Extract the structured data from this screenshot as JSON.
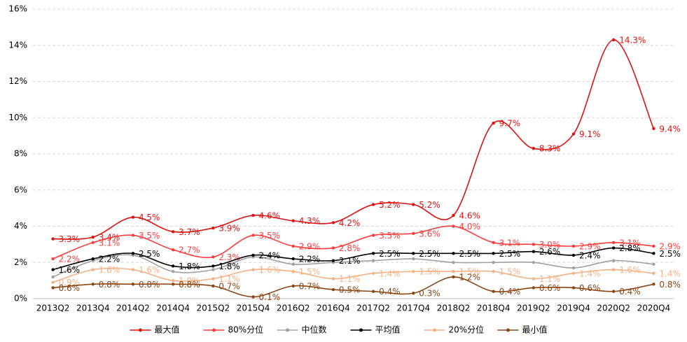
{
  "chart_data": {
    "type": "line",
    "categories": [
      "2013Q2",
      "2013Q4",
      "2014Q2",
      "2014Q4",
      "2015Q2",
      "2015Q4",
      "2016Q2",
      "2016Q4",
      "2017Q2",
      "2017Q4",
      "2018Q2",
      "2018Q4",
      "2019Q2",
      "2019Q4",
      "2020Q2",
      "2020Q4"
    ],
    "ylim": [
      0,
      16
    ],
    "yticks": [
      {
        "value": 0,
        "label": "0%"
      },
      {
        "value": 2,
        "label": "2%"
      },
      {
        "value": 4,
        "label": "4%"
      },
      {
        "value": 6,
        "label": "6%"
      },
      {
        "value": 8,
        "label": "8%"
      },
      {
        "value": 10,
        "label": "10%"
      },
      {
        "value": 12,
        "label": "12%"
      },
      {
        "value": 14,
        "label": "14%"
      },
      {
        "value": 16,
        "label": "16%"
      }
    ],
    "grid": true,
    "legend": "bottom",
    "series": [
      {
        "name": "最大值",
        "color": "#e01010",
        "values": [
          3.3,
          3.4,
          4.5,
          3.7,
          3.9,
          4.6,
          4.3,
          4.2,
          5.2,
          5.2,
          4.6,
          9.7,
          8.3,
          9.1,
          14.3,
          9.4
        ],
        "value_labels": [
          "3.3%",
          "3.4%",
          "4.5%",
          "3.7%",
          "3.9%",
          "4.6%",
          "4.3%",
          "4.2%",
          "5.2%",
          "5.2%",
          "4.6%",
          "9.7%",
          "8.3%",
          "9.1%",
          "14.3%",
          "9.4%"
        ]
      },
      {
        "name": "80%分位",
        "color": "#ff3b3b",
        "values": [
          2.2,
          3.1,
          3.5,
          2.7,
          2.3,
          3.5,
          2.9,
          2.8,
          3.5,
          3.6,
          4.0,
          3.1,
          3.0,
          2.9,
          3.1,
          2.9
        ],
        "value_labels": [
          "2.2%",
          "3.1%",
          "3.5%",
          "2.7%",
          "2.3%",
          "3.5%",
          "2.9%",
          "2.8%",
          "3.5%",
          "3.6%",
          "4.0%",
          "3.1%",
          "3.0%",
          "2.9%",
          "3.1%",
          "2.9%"
        ]
      },
      {
        "name": "中位数",
        "color": "#a0a0a0",
        "values": [
          1.2,
          2.1,
          2.4,
          1.5,
          1.6,
          2.3,
          1.9,
          2.0,
          2.1,
          2.2,
          2.0,
          2.0,
          2.0,
          1.7,
          2.1,
          1.9
        ]
      },
      {
        "name": "平均值",
        "color": "#000000",
        "values": [
          1.6,
          2.2,
          2.5,
          1.8,
          1.8,
          2.4,
          2.2,
          2.1,
          2.5,
          2.5,
          2.5,
          2.5,
          2.6,
          2.4,
          2.8,
          2.5
        ],
        "value_labels": [
          "1.6%",
          "2.2%",
          "2.5%",
          "1.8%",
          "1.8%",
          "2.4%",
          "2.2%",
          "2.1%",
          "2.5%",
          "2.5%",
          "2.5%",
          "2.5%",
          "2.6%",
          "2.4%",
          "2.8%",
          "2.5%"
        ]
      },
      {
        "name": "20%分位",
        "color": "#f4b183",
        "values": [
          0.9,
          1.6,
          1.6,
          1.0,
          1.1,
          1.6,
          1.5,
          1.1,
          1.4,
          1.5,
          1.5,
          1.5,
          1.1,
          1.4,
          1.6,
          1.4
        ],
        "value_labels": [
          "0.9%",
          "1.6%",
          "1.6%",
          "1.0%",
          "1.1%",
          "1.6%",
          "1.5%",
          "1.1%",
          "1.4%",
          "1.5%",
          "1.5%",
          "1.5%",
          "1.1%",
          "1.4%",
          "1.6%",
          "1.4%"
        ]
      },
      {
        "name": "最小值",
        "color": "#8b4513",
        "values": [
          0.6,
          0.8,
          0.8,
          0.8,
          0.7,
          0.1,
          0.7,
          0.5,
          0.4,
          0.3,
          1.2,
          0.4,
          0.6,
          0.6,
          0.4,
          0.8
        ],
        "value_labels": [
          "0.6%",
          "0.8%",
          "0.8%",
          "0.8%",
          "0.7%",
          "0.1%",
          "0.7%",
          "0.5%",
          "0.4%",
          "0.3%",
          "1.2%",
          "0.4%",
          "0.6%",
          "0.6%",
          "0.4%",
          "0.8%"
        ]
      }
    ]
  }
}
